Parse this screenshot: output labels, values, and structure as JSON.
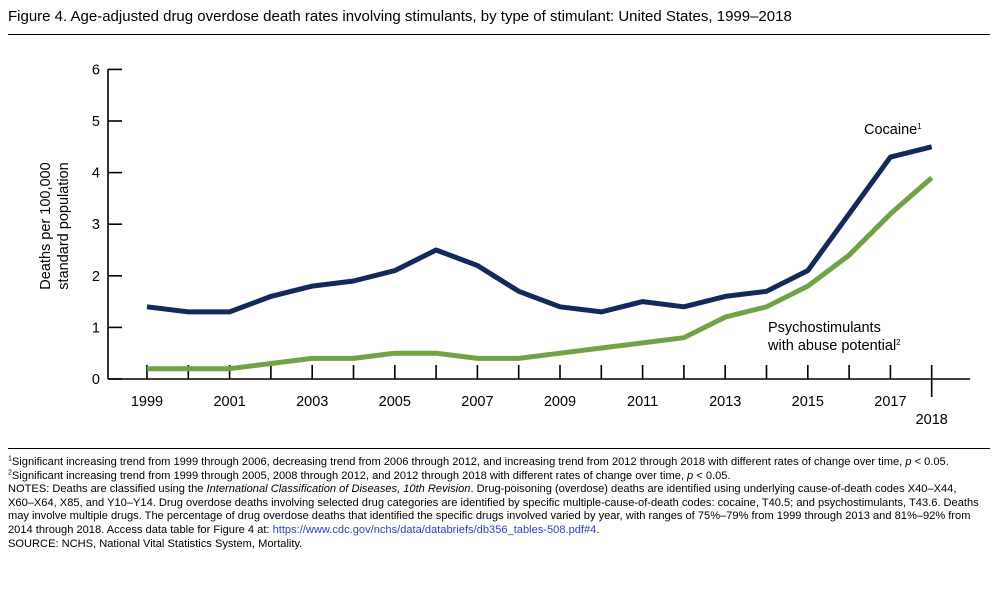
{
  "figure": {
    "title": "Figure 4. Age-adjusted drug overdose death rates involving stimulants, by type of stimulant: United States, 1999–2018"
  },
  "colors": {
    "cocaine": "#13285c",
    "psychostimulants": "#6fa343",
    "axis": "#000000",
    "link": "#2a3fd6"
  },
  "chart_data": {
    "type": "line",
    "title": "Figure 4. Age-adjusted drug overdose death rates involving stimulants, by type of stimulant: United States, 1999–2018",
    "ylabel_line1": "Deaths per 100,000",
    "ylabel_line2": "standard population",
    "xlabel": "",
    "ylim": [
      0,
      6
    ],
    "yticks": [
      "0",
      "1",
      "2",
      "3",
      "4",
      "5",
      "6"
    ],
    "x": [
      1999,
      2000,
      2001,
      2002,
      2003,
      2004,
      2005,
      2006,
      2007,
      2008,
      2009,
      2010,
      2011,
      2012,
      2013,
      2014,
      2015,
      2016,
      2017,
      2018
    ],
    "xtick_labels": [
      "1999",
      "2001",
      "2003",
      "2005",
      "2007",
      "2009",
      "2011",
      "2013",
      "2015",
      "2017"
    ],
    "last_year_label": "2018",
    "grid": false,
    "legend": "inline labels",
    "series": [
      {
        "name": "Cocaine",
        "sup": "1",
        "values": [
          1.4,
          1.3,
          1.3,
          1.6,
          1.8,
          1.9,
          2.1,
          2.5,
          2.2,
          1.7,
          1.4,
          1.3,
          1.5,
          1.4,
          1.6,
          1.7,
          2.1,
          3.2,
          4.3,
          4.5
        ]
      },
      {
        "name_line1": "Psychostimulants",
        "name_line2": "with abuse potential",
        "sup": "2",
        "values": [
          0.2,
          0.2,
          0.2,
          0.3,
          0.4,
          0.4,
          0.5,
          0.5,
          0.4,
          0.4,
          0.5,
          0.6,
          0.7,
          0.8,
          1.2,
          1.4,
          1.8,
          2.4,
          3.2,
          3.9
        ]
      }
    ]
  },
  "notes": {
    "n1_sup": "1",
    "n1_text": "Significant increasing trend from 1999 through 2006, decreasing trend from 2006 through 2012, and increasing trend from 2012 through 2018 with different rates of change over time, ",
    "n1_p": "p",
    "n1_tail": " < 0.05.",
    "n2_sup": "2",
    "n2_text": "Significant increasing trend from 1999 through 2005, 2008 through 2012, and 2012 through 2018 with different rates of change over time, ",
    "n2_p": "p",
    "n2_tail": " < 0.05.",
    "n3_a": "NOTES: Deaths are classified using the ",
    "n3_italic": "International Classification of Diseases, 10th Revision",
    "n3_b": ". Drug-poisoning (overdose) deaths are identified using underlying cause-of-death codes X40–X44, X60–X64, X85, and Y10–Y14. Drug overdose deaths involving selected drug categories are identified by specific multiple-cause-of-death codes: cocaine, T40.5; and psychostimulants, T43.6. Deaths may involve multiple drugs. The percentage of drug overdose deaths that identified the specific drugs involved varied by year, with ranges of 75%–79% from 1999 through 2013 and 81%–92% from 2014 through 2018. Access data table for Figure 4 at: ",
    "n3_link": "https://www.cdc.gov/nchs/data/databriefs/db356_tables-508.pdf#4",
    "n3_end": ".",
    "source": "SOURCE: NCHS, National Vital Statistics System, Mortality."
  }
}
